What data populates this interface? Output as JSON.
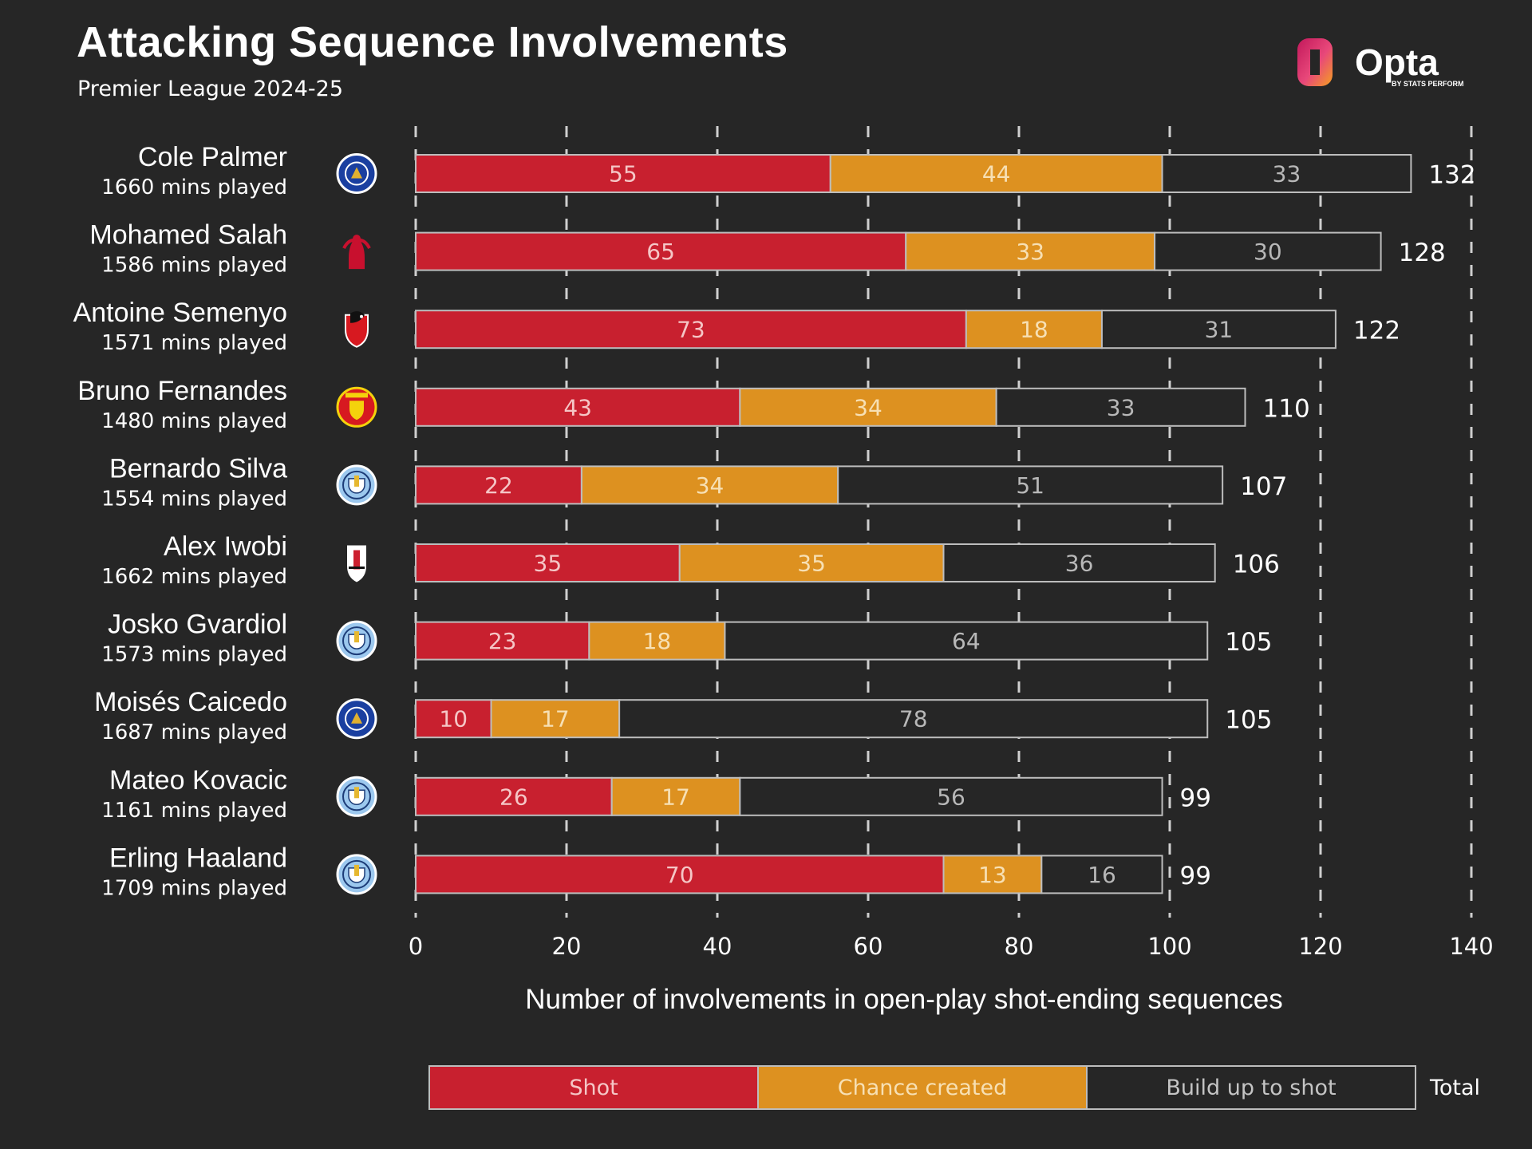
{
  "title": "Attacking Sequence Involvements",
  "subtitle": "Premier League 2024-25",
  "logo": {
    "text": "Opta",
    "sub": "BY STATS PERFORM"
  },
  "colors": {
    "shot": "#c8202f",
    "chance": "#dd9120",
    "buildup": "#262626",
    "border": "#bdbdbd",
    "background": "#262626"
  },
  "chart_data": {
    "type": "bar",
    "orientation": "horizontal",
    "stacked": true,
    "title": "Attacking Sequence Involvements",
    "subtitle": "Premier League 2024-25",
    "xlabel": "Number of involvements in open-play shot-ending sequences",
    "xlim": [
      0,
      140
    ],
    "xticks": [
      0,
      20,
      40,
      60,
      80,
      100,
      120,
      140
    ],
    "grid": "vertical dashed",
    "legend_placement": "bottom",
    "legend_total_label": "Total",
    "categories": [
      "Cole Palmer",
      "Mohamed Salah",
      "Antoine Semenyo",
      "Bruno Fernandes",
      "Bernardo Silva",
      "Alex Iwobi",
      "Josko Gvardiol",
      "Moisés Caicedo",
      "Mateo Kovacic",
      "Erling Haaland"
    ],
    "minutes": [
      "1660 mins played",
      "1586 mins played",
      "1571 mins played",
      "1480 mins played",
      "1554 mins played",
      "1662 mins played",
      "1573 mins played",
      "1687 mins played",
      "1161 mins played",
      "1709 mins played"
    ],
    "clubs": [
      "chelsea-crest-icon",
      "liverpool-crest-icon",
      "bournemouth-crest-icon",
      "man-utd-crest-icon",
      "man-city-crest-icon",
      "fulham-crest-icon",
      "man-city-crest-icon",
      "chelsea-crest-icon",
      "man-city-crest-icon",
      "man-city-crest-icon"
    ],
    "series": [
      {
        "name": "Shot",
        "values": [
          55,
          65,
          73,
          43,
          22,
          35,
          23,
          10,
          26,
          70
        ]
      },
      {
        "name": "Chance created",
        "values": [
          44,
          33,
          18,
          34,
          34,
          35,
          18,
          17,
          17,
          13
        ]
      },
      {
        "name": "Build up to shot",
        "values": [
          33,
          30,
          31,
          33,
          51,
          36,
          64,
          78,
          56,
          16
        ]
      }
    ],
    "totals": [
      132,
      128,
      122,
      110,
      107,
      106,
      105,
      105,
      99,
      99
    ]
  }
}
